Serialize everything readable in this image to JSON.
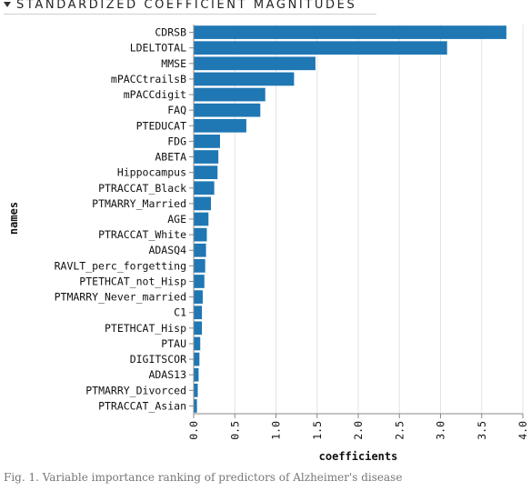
{
  "header": {
    "title": "STANDARDIZED COEFFICIENT MAGNITUDES",
    "toggle_icon": "caret-down-icon"
  },
  "caption": "Fig. 1. Variable importance ranking of predictors of Alzheimer's disease",
  "chart_data": {
    "type": "bar",
    "orientation": "horizontal",
    "title": "",
    "xlabel": "coefficients",
    "ylabel": "names",
    "xlim": [
      0,
      4
    ],
    "xticks": [
      "0.0",
      "0.5",
      "1.0",
      "1.5",
      "2.0",
      "2.5",
      "3.0",
      "3.5",
      "4.0"
    ],
    "grid": true,
    "bar_color": "#1f77b4",
    "categories": [
      "CDRSB",
      "LDELTOTAL",
      "MMSE",
      "mPACCtrailsB",
      "mPACCdigit",
      "FAQ",
      "PTEDUCAT",
      "FDG",
      "ABETA",
      "Hippocampus",
      "PTRACCAT_Black",
      "PTMARRY_Married",
      "AGE",
      "PTRACCAT_White",
      "ADASQ4",
      "RAVLT_perc_forgetting",
      "PTETHCAT_not_Hisp",
      "PTMARRY_Never_married",
      "C1",
      "PTETHCAT_Hisp",
      "PTAU",
      "DIGITSCOR",
      "ADAS13",
      "PTMARRY_Divorced",
      "PTRACCAT_Asian"
    ],
    "values": [
      3.8,
      3.08,
      1.48,
      1.22,
      0.87,
      0.81,
      0.64,
      0.32,
      0.3,
      0.29,
      0.25,
      0.21,
      0.18,
      0.16,
      0.15,
      0.14,
      0.13,
      0.11,
      0.1,
      0.1,
      0.08,
      0.07,
      0.06,
      0.05,
      0.04
    ]
  }
}
